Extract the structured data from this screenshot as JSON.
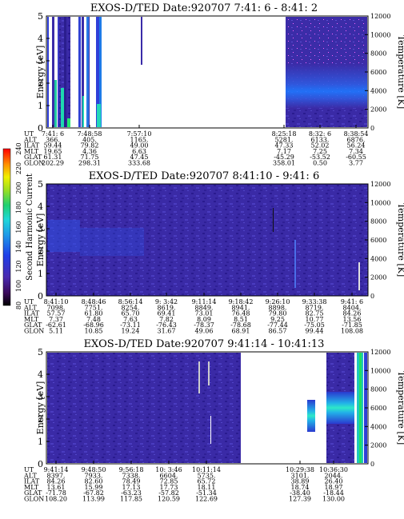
{
  "colorbar": {
    "label": "Second Harmonic Current",
    "ticks": [
      "80",
      "100",
      "120",
      "140",
      "160",
      "180",
      "200",
      "220",
      "240"
    ]
  },
  "ephemeris_labels": [
    "UT",
    "ALT",
    "ILAT",
    "MLT",
    "GLAT",
    "GLON"
  ],
  "chart_data": [
    {
      "type": "heatmap",
      "title": "EXOS-D/TED   Date:920707  7:41: 6 - 8:41: 2",
      "ylabel": "Energy [eV]",
      "y2label": "Temperature [K]",
      "ylim": [
        0,
        5
      ],
      "y2lim": [
        0,
        12000
      ],
      "yticks": [
        "0",
        "1",
        "2",
        "3",
        "4",
        "5"
      ],
      "y2ticks": [
        "0",
        "2000",
        "4000",
        "6000",
        "8000",
        "10000",
        "12000"
      ],
      "time_columns": [
        {
          "UT": "7:41: 6",
          "ALT": "366.",
          "ILAT": "59.44",
          "MLT": "19.65",
          "GLAT": "61.31",
          "GLON": "202.29"
        },
        {
          "UT": "7:48:58",
          "ALT": "405.",
          "ILAT": "79.82",
          "MLT": "4.36",
          "GLAT": "71.75",
          "GLON": "298.31"
        },
        {
          "UT": "7:57:10",
          "ALT": "1165.",
          "ILAT": "49.00",
          "MLT": "6.63",
          "GLAT": "47.45",
          "GLON": "333.68"
        },
        {
          "UT": "8:25:18",
          "ALT": "5281.",
          "ILAT": "47.33",
          "MLT": "7.17",
          "GLAT": "-45.29",
          "GLON": "358.01"
        },
        {
          "UT": "8:32: 6",
          "ALT": "6133.",
          "ILAT": "52.02",
          "MLT": "7.25",
          "GLAT": "-53.52",
          "GLON": "0.50"
        },
        {
          "UT": "8:38:54",
          "ALT": "6876.",
          "ILAT": "56.24",
          "MLT": "7.34",
          "GLAT": "-60.55",
          "GLON": "3.77"
        }
      ]
    },
    {
      "type": "heatmap",
      "title": "EXOS-D/TED   Date:920707  8:41:10 - 9:41: 6",
      "ylabel": "Energy [eV]",
      "y2label": "Temperature [K]",
      "ylim": [
        0,
        5
      ],
      "y2lim": [
        0,
        12000
      ],
      "yticks": [
        "0",
        "1",
        "2",
        "3",
        "4",
        "5"
      ],
      "y2ticks": [
        "0",
        "2000",
        "4000",
        "6000",
        "8000",
        "10000",
        "12000"
      ],
      "time_columns": [
        {
          "UT": "8:41:10",
          "ALT": "7098.",
          "ILAT": "57.57",
          "MLT": "7.37",
          "GLAT": "-62.61",
          "GLON": "5.11"
        },
        {
          "UT": "8:48:46",
          "ALT": "7751.",
          "ILAT": "61.80",
          "MLT": "7.48",
          "GLAT": "-68.96",
          "GLON": "10.85"
        },
        {
          "UT": "8:56:14",
          "ALT": "8254.",
          "ILAT": "65.70",
          "MLT": "7.63",
          "GLAT": "-73.11",
          "GLON": "19.24"
        },
        {
          "UT": "9: 3:42",
          "ALT": "8619.",
          "ILAT": "69.41",
          "MLT": "7.82",
          "GLAT": "-76.43",
          "GLON": "31.67"
        },
        {
          "UT": "9:11:14",
          "ALT": "8849.",
          "ILAT": "73.01",
          "MLT": "8.09",
          "GLAT": "-78.37",
          "GLON": "49.06"
        },
        {
          "UT": "9:18:42",
          "ALT": "8941.",
          "ILAT": "76.48",
          "MLT": "8.51",
          "GLAT": "-78.68",
          "GLON": "68.91"
        },
        {
          "UT": "9:26:10",
          "ALT": "8898.",
          "ILAT": "79.80",
          "MLT": "9.25",
          "GLAT": "-77.44",
          "GLON": "86.57"
        },
        {
          "UT": "9:33:38",
          "ALT": "8719.",
          "ILAT": "82.75",
          "MLT": "10.77",
          "GLAT": "-75.05",
          "GLON": "99.44"
        },
        {
          "UT": "9:41: 6",
          "ALT": "8404.",
          "ILAT": "84.26",
          "MLT": "13.56",
          "GLAT": "-71.85",
          "GLON": "108.08"
        }
      ]
    },
    {
      "type": "heatmap",
      "title": "EXOS-D/TED   Date:920707  9:41:14 - 10:41:13",
      "ylabel": "Energy [eV]",
      "y2label": "Temperature [K]",
      "ylim": [
        0,
        5
      ],
      "y2lim": [
        0,
        12000
      ],
      "yticks": [
        "0",
        "1",
        "2",
        "3",
        "4",
        "5"
      ],
      "y2ticks": [
        "0",
        "2000",
        "4000",
        "6000",
        "8000",
        "10000",
        "12000"
      ],
      "time_columns": [
        {
          "UT": "9:41:14",
          "ALT": "8397.",
          "ILAT": "84.26",
          "MLT": "13.61",
          "GLAT": "-71.78",
          "GLON": "108.20"
        },
        {
          "UT": "9:48:50",
          "ALT": "7933.",
          "ILAT": "82.60",
          "MLT": "15.99",
          "GLAT": "-67.82",
          "GLON": "113.99"
        },
        {
          "UT": "9:56:18",
          "ALT": "7338.",
          "ILAT": "78.49",
          "MLT": "17.13",
          "GLAT": "-63.23",
          "GLON": "117.85"
        },
        {
          "UT": "10: 3:46",
          "ALT": "6604.",
          "ILAT": "72.85",
          "MLT": "17.73",
          "GLAT": "-57.82",
          "GLON": "120.59"
        },
        {
          "UT": "10:11:14",
          "ALT": "5735.",
          "ILAT": "65.72",
          "MLT": "18.11",
          "GLAT": "-51.34",
          "GLON": "122.69"
        },
        {
          "UT": "10:29:38",
          "ALT": "3101.",
          "ILAT": "38.89",
          "MLT": "18.74",
          "GLAT": "-38.40",
          "GLON": "127.39"
        },
        {
          "UT": "10:36:30",
          "ALT": "2044.",
          "ILAT": "26.40",
          "MLT": "18.97",
          "GLAT": "-18.44",
          "GLON": "130.00"
        }
      ]
    }
  ]
}
